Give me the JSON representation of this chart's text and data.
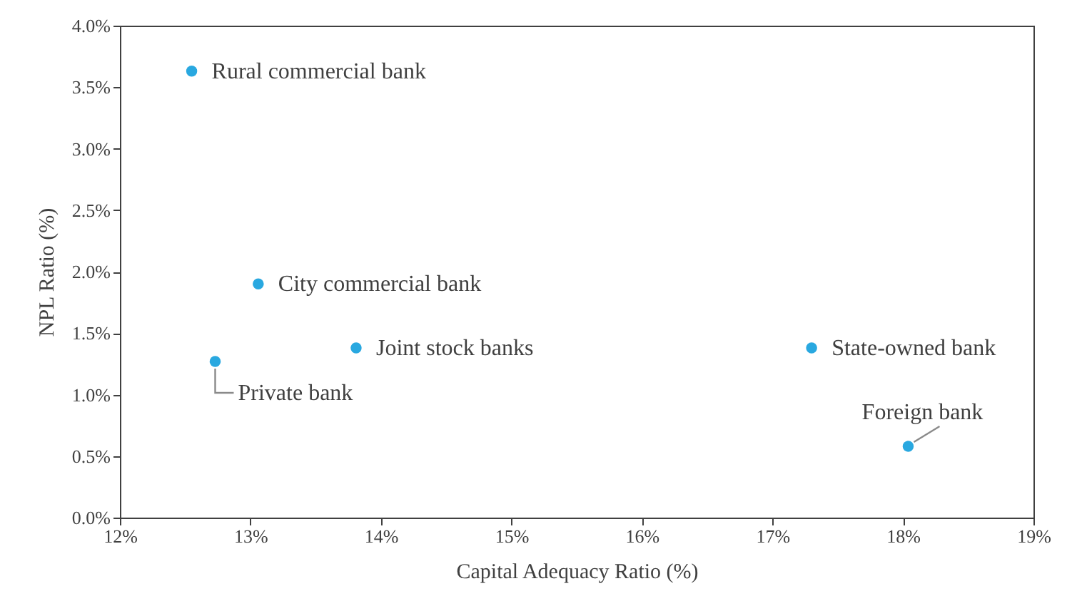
{
  "chart_data": {
    "type": "scatter",
    "xlabel": "Capital Adequacy Ratio (%)",
    "ylabel": "NPL Ratio (%)",
    "x": [
      12.55,
      13.06,
      13.81,
      12.73,
      17.3,
      18.04
    ],
    "series": [
      {
        "color": "#29a8e0",
        "values": [
          3.63,
          1.9,
          1.38,
          1.27,
          1.38,
          0.58
        ]
      }
    ],
    "xlim": [
      12,
      19
    ],
    "ylim": [
      0,
      4
    ],
    "xticks": [
      {
        "value": 12,
        "label": "12%"
      },
      {
        "value": 13,
        "label": "13%"
      },
      {
        "value": 14,
        "label": "14%"
      },
      {
        "value": 15,
        "label": "15%"
      },
      {
        "value": 16,
        "label": "16%"
      },
      {
        "value": 17,
        "label": "17%"
      },
      {
        "value": 18,
        "label": "18%"
      },
      {
        "value": 19,
        "label": "19%"
      }
    ],
    "yticks": [
      {
        "value": 0,
        "label": "0.0%"
      },
      {
        "value": 0.5,
        "label": "0.5%"
      },
      {
        "value": 1,
        "label": "1.0%"
      },
      {
        "value": 1.5,
        "label": "1.5%"
      },
      {
        "value": 2,
        "label": "2.0%"
      },
      {
        "value": 2.5,
        "label": "2.5%"
      },
      {
        "value": 3,
        "label": "3.0%"
      },
      {
        "value": 3.5,
        "label": "3.5%"
      },
      {
        "value": 4,
        "label": "4.0%"
      }
    ],
    "annotations": [
      {
        "text": "Rural commercial bank",
        "x": 12.55,
        "y": 3.63
      },
      {
        "text": "City commercial bank",
        "x": 13.06,
        "y": 1.9
      },
      {
        "text": "Joint stock banks",
        "x": 13.81,
        "y": 1.38
      },
      {
        "text": "Private bank",
        "x": 12.73,
        "y": 1.27
      },
      {
        "text": "State-owned bank",
        "x": 17.3,
        "y": 1.38
      },
      {
        "text": "Foreign bank",
        "x": 18.04,
        "y": 0.58
      }
    ],
    "grid": false,
    "marker": "circle"
  }
}
